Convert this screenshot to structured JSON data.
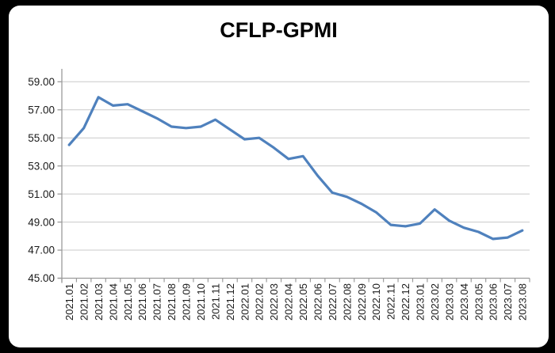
{
  "window": {
    "outer_background": "#000000",
    "card_background": "#ffffff"
  },
  "chart_data": {
    "type": "line",
    "title": "CFLP-GPMI",
    "categories": [
      "2021.01",
      "2021.02",
      "2021.03",
      "2021.04",
      "2021.05",
      "2021.06",
      "2021.07",
      "2021.08",
      "2021.09",
      "2021.10",
      "2021.11",
      "2021.12",
      "2022.01",
      "2022.02",
      "2022.03",
      "2022.04",
      "2022.05",
      "2022.06",
      "2022.07",
      "2022.08",
      "2022.09",
      "2022.10",
      "2022.11",
      "2022.12",
      "2023.01",
      "2023.02",
      "2023.03",
      "2023.04",
      "2023.05",
      "2023.06",
      "2023.07",
      "2023.08"
    ],
    "series": [
      {
        "name": "CFLP-GPMI",
        "color": "#4F81BD",
        "values": [
          54.5,
          55.7,
          57.9,
          57.3,
          57.4,
          56.9,
          56.4,
          55.8,
          55.7,
          55.8,
          56.3,
          55.6,
          54.9,
          55.0,
          54.3,
          53.5,
          53.7,
          52.3,
          51.1,
          50.8,
          50.3,
          49.7,
          48.8,
          48.7,
          48.9,
          49.9,
          49.1,
          48.6,
          48.3,
          47.8,
          47.9,
          48.4
        ]
      }
    ],
    "y_ticks": [
      {
        "value": 59,
        "label": "59.00"
      },
      {
        "value": 57,
        "label": "57.00"
      },
      {
        "value": 55,
        "label": "55.00"
      },
      {
        "value": 53,
        "label": "53.00"
      },
      {
        "value": 51,
        "label": "51.00"
      },
      {
        "value": 49,
        "label": "49.00"
      },
      {
        "value": 47,
        "label": "47.00"
      },
      {
        "value": 45,
        "label": "45.00"
      }
    ],
    "ylim": [
      45,
      59.9
    ],
    "grid": "horizontal",
    "legend": "none",
    "x_label_rotation": -90,
    "gridline_color": "#C9C9C9",
    "axis_color": "#9B9B9B",
    "label_color": "#1a1a1a"
  }
}
